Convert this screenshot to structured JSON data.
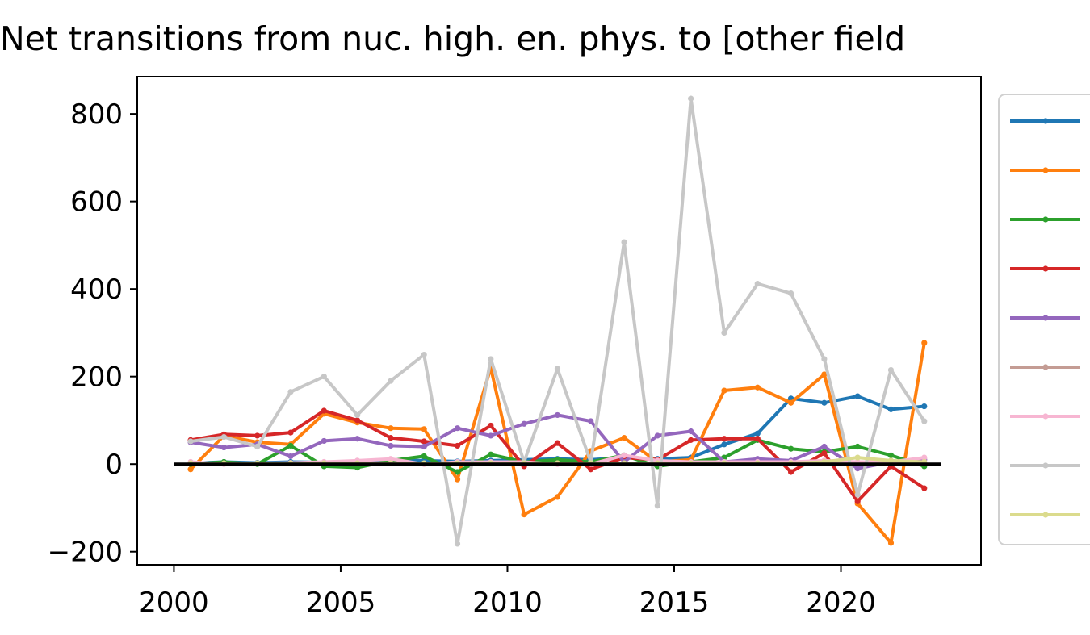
{
  "chart_data": {
    "type": "line",
    "title": "Net transitions from nuc. high. en. phys. to [other field",
    "xlim": [
      1998.9,
      2024.2
    ],
    "ylim": [
      -230,
      885
    ],
    "x_ticks": [
      2000,
      2005,
      2010,
      2015,
      2020
    ],
    "x_tick_labels": [
      "2000",
      "2005",
      "2010",
      "2015",
      "2020"
    ],
    "y_ticks": [
      -200,
      0,
      200,
      400,
      600,
      800
    ],
    "y_tick_labels": [
      "−200",
      "0",
      "200",
      "400",
      "600",
      "800"
    ],
    "x": [
      2000.5,
      2001.5,
      2002.5,
      2003.5,
      2004.5,
      2005.5,
      2006.5,
      2007.5,
      2008.5,
      2009.5,
      2010.5,
      2011.5,
      2012.5,
      2013.5,
      2014.5,
      2015.5,
      2016.5,
      2017.5,
      2018.5,
      2019.5,
      2020.5,
      2021.5,
      2022.5
    ],
    "zero_line": {
      "from": 2000,
      "to": 2023,
      "y": 0,
      "color": "#000000"
    },
    "legend": {
      "location": "right",
      "frame": true
    },
    "series": [
      {
        "color": "#1f77b4",
        "values": [
          2,
          5,
          3,
          5,
          4,
          6,
          10,
          8,
          6,
          8,
          10,
          12,
          10,
          15,
          12,
          15,
          45,
          70,
          150,
          140,
          155,
          125,
          132
        ]
      },
      {
        "color": "#ff7f0e",
        "values": [
          -12,
          65,
          50,
          45,
          115,
          95,
          82,
          80,
          -35,
          220,
          -115,
          -75,
          30,
          60,
          5,
          10,
          168,
          175,
          140,
          205,
          -90,
          -180,
          277
        ]
      },
      {
        "color": "#2ca02c",
        "values": [
          0,
          5,
          0,
          42,
          -5,
          -8,
          8,
          18,
          -18,
          22,
          5,
          10,
          5,
          20,
          -5,
          5,
          15,
          55,
          35,
          28,
          40,
          20,
          -5
        ]
      },
      {
        "color": "#d62728",
        "values": [
          55,
          68,
          65,
          72,
          122,
          100,
          60,
          52,
          42,
          88,
          -5,
          48,
          -12,
          15,
          10,
          55,
          58,
          58,
          -18,
          25,
          -85,
          -5,
          -55
        ]
      },
      {
        "color": "#9467bd",
        "values": [
          50,
          38,
          45,
          18,
          53,
          58,
          42,
          40,
          82,
          65,
          92,
          112,
          98,
          5,
          65,
          75,
          5,
          12,
          8,
          40,
          -10,
          5,
          10
        ]
      },
      {
        "color": "#c49c94",
        "values": [
          2,
          2,
          2,
          2,
          2,
          2,
          2,
          2,
          2,
          2,
          2,
          2,
          2,
          2,
          2,
          2,
          2,
          2,
          2,
          2,
          2,
          2,
          2
        ]
      },
      {
        "color": "#f7b6d2",
        "values": [
          5,
          0,
          2,
          3,
          5,
          8,
          12,
          0,
          5,
          5,
          5,
          0,
          0,
          20,
          8,
          5,
          5,
          5,
          5,
          8,
          5,
          5,
          15
        ]
      },
      {
        "color": "#c7c7c7",
        "values": [
          52,
          62,
          40,
          165,
          200,
          112,
          190,
          250,
          -182,
          240,
          5,
          218,
          5,
          507,
          -95,
          835,
          300,
          412,
          390,
          240,
          -70,
          215,
          98
        ]
      },
      {
        "color": "#dbdb8d",
        "values": [
          2,
          2,
          2,
          2,
          2,
          2,
          2,
          2,
          2,
          2,
          2,
          2,
          2,
          2,
          2,
          2,
          2,
          2,
          2,
          5,
          15,
          8,
          5
        ]
      }
    ]
  }
}
